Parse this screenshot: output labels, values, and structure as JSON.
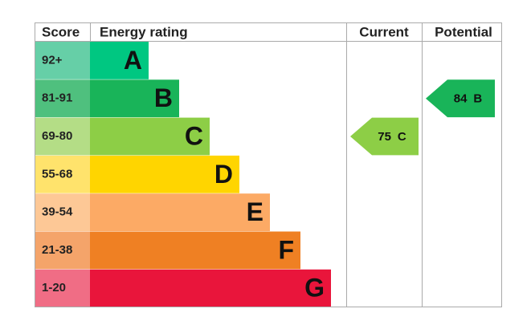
{
  "header": {
    "score": "Score",
    "rating": "Energy rating",
    "current": "Current",
    "potential": "Potential"
  },
  "bands": [
    {
      "score": "92+",
      "letter": "A"
    },
    {
      "score": "81-91",
      "letter": "B"
    },
    {
      "score": "69-80",
      "letter": "C"
    },
    {
      "score": "55-68",
      "letter": "D"
    },
    {
      "score": "39-54",
      "letter": "E"
    },
    {
      "score": "21-38",
      "letter": "F"
    },
    {
      "score": "1-20",
      "letter": "G"
    }
  ],
  "current": {
    "value": 75,
    "letter": "C"
  },
  "potential": {
    "value": 84,
    "letter": "B"
  }
}
